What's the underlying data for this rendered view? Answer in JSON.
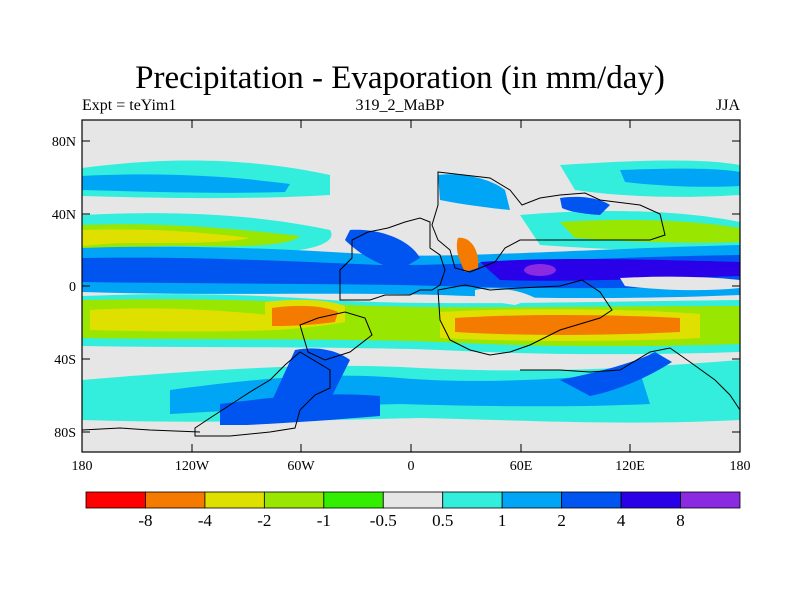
{
  "header": {
    "title": "Precipitation - Evaporation (in mm/day)",
    "left": "Expt = teYim1",
    "center": "319_2_MaBP",
    "right": "JJA"
  },
  "axes": {
    "lat_labels": [
      "80N",
      "40N",
      "0",
      "40S",
      "80S"
    ],
    "lon_labels": [
      "180",
      "120W",
      "60W",
      "0",
      "60E",
      "120E",
      "180"
    ]
  },
  "colorbar": {
    "colors": [
      "#ff0000",
      "#f57a00",
      "#e0e000",
      "#99e600",
      "#33ee00",
      "#e6e6e6",
      "#33eedd",
      "#00a6f5",
      "#0055f0",
      "#2a00e8",
      "#8a2be2"
    ],
    "labels": [
      "-8",
      "-4",
      "-2",
      "-1",
      "-0.5",
      "0.5",
      "1",
      "2",
      "4",
      "8"
    ]
  },
  "palette": {
    "background": "#e6e6e6",
    "coastline": "#000000"
  }
}
